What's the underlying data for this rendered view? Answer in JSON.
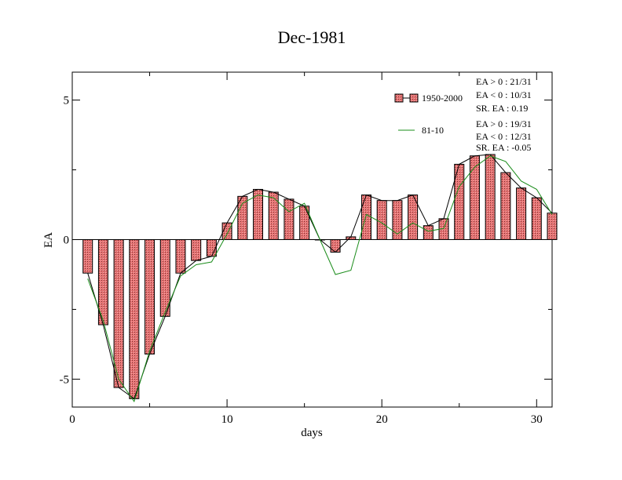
{
  "chart_data": {
    "type": "bar",
    "title": "Dec-1981",
    "xlabel": "days",
    "ylabel": "EA",
    "xlim": [
      0,
      31
    ],
    "ylim": [
      -6,
      6
    ],
    "x_ticks": [
      0,
      10,
      20,
      30
    ],
    "y_ticks": [
      -5,
      0,
      5
    ],
    "x_tick_labels": [
      "0",
      "10",
      "20",
      "30"
    ],
    "y_tick_labels": [
      "-5",
      "0",
      "5"
    ],
    "grid": false,
    "legend_position": "top-right",
    "x": [
      1,
      2,
      3,
      4,
      5,
      6,
      7,
      8,
      9,
      10,
      11,
      12,
      13,
      14,
      15,
      16,
      17,
      18,
      19,
      20,
      21,
      22,
      23,
      24,
      25,
      26,
      27,
      28,
      29,
      30,
      31
    ],
    "series": [
      {
        "name": "1950-2000",
        "kind": "bar",
        "color": "#e06666",
        "values": [
          -1.2,
          -3.05,
          -5.3,
          -5.7,
          -4.1,
          -2.75,
          -1.2,
          -0.75,
          -0.6,
          0.6,
          1.55,
          1.8,
          1.7,
          1.45,
          1.2,
          0.0,
          -0.45,
          0.1,
          1.6,
          1.4,
          1.4,
          1.6,
          0.5,
          0.75,
          2.7,
          3.0,
          3.05,
          2.4,
          1.85,
          1.5,
          0.95
        ]
      },
      {
        "name": "81-10",
        "kind": "line",
        "color": "#1a8c1a",
        "values": [
          -1.4,
          -2.9,
          -5.0,
          -5.8,
          -4.0,
          -2.6,
          -1.3,
          -0.9,
          -0.8,
          0.2,
          1.3,
          1.6,
          1.5,
          1.0,
          1.3,
          0.0,
          -1.25,
          -1.1,
          0.9,
          0.6,
          0.2,
          0.6,
          0.3,
          0.4,
          1.9,
          2.6,
          3.0,
          2.8,
          2.1,
          1.8,
          0.9
        ]
      }
    ],
    "stats": [
      {
        "series": "1950-2000",
        "lines": [
          "EA > 0 : 21/31",
          "EA < 0 : 10/31",
          "SR. EA :  0.19"
        ]
      },
      {
        "series": "81-10",
        "lines": [
          "EA > 0 : 19/31",
          "EA < 0 : 12/31",
          "SR. EA : -0.05"
        ]
      }
    ]
  }
}
